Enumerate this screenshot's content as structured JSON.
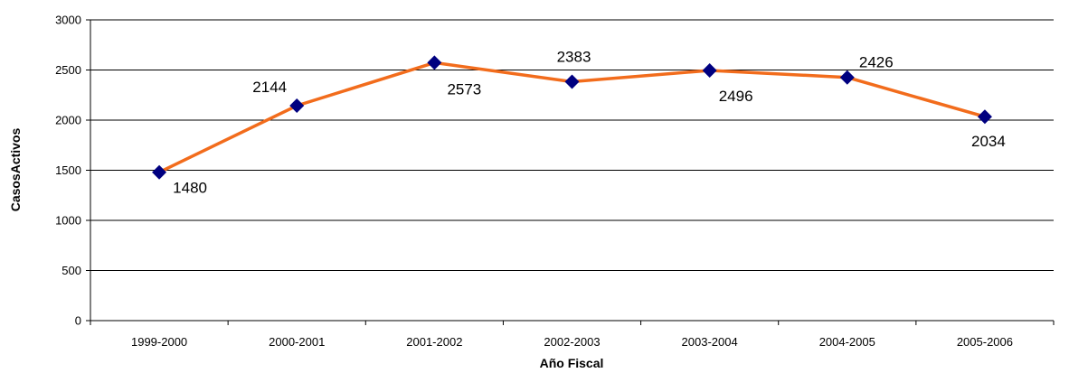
{
  "chart_data": {
    "type": "line",
    "title": "",
    "xlabel": "Año Fiscal",
    "ylabel": "CasosActivos",
    "categories": [
      "1999-2000",
      "2000-2001",
      "2001-2002",
      "2002-2003",
      "2003-2004",
      "2004-2005",
      "2005-2006"
    ],
    "series": [
      {
        "values": [
          1480,
          2144,
          2573,
          2383,
          2496,
          2426,
          2034
        ]
      }
    ],
    "data_labels": [
      "1480",
      "2144",
      "2573",
      "2383",
      "2496",
      "2426",
      "2034"
    ],
    "ylim": [
      0,
      3000
    ],
    "yticks": [
      "0",
      "500",
      "1000",
      "1500",
      "2000",
      "2500",
      "3000"
    ],
    "grid": true,
    "legend": "none",
    "colors": {
      "line": "#f26c1c",
      "marker": "#000080",
      "grid": "#000000"
    }
  }
}
